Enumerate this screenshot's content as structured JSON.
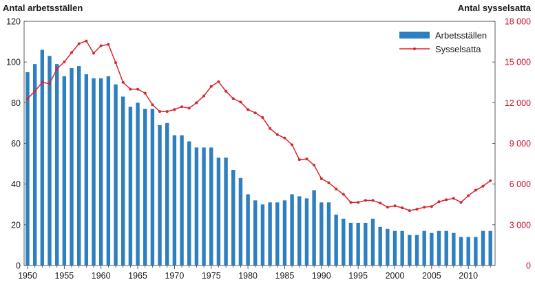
{
  "chart_data": {
    "type": "bar+line",
    "left_axis_title": "Antal arbetsställen",
    "right_axis_title": "Antal sysselsatta",
    "x": [
      1950,
      1951,
      1952,
      1953,
      1954,
      1955,
      1956,
      1957,
      1958,
      1959,
      1960,
      1961,
      1962,
      1963,
      1964,
      1965,
      1966,
      1967,
      1968,
      1969,
      1970,
      1971,
      1972,
      1973,
      1974,
      1975,
      1976,
      1977,
      1978,
      1979,
      1980,
      1981,
      1982,
      1983,
      1984,
      1985,
      1986,
      1987,
      1988,
      1989,
      1990,
      1991,
      1992,
      1993,
      1994,
      1995,
      1996,
      1997,
      1998,
      1999,
      2000,
      2001,
      2002,
      2003,
      2004,
      2005,
      2006,
      2007,
      2008,
      2009,
      2010,
      2011,
      2012,
      2013
    ],
    "x_ticks": [
      "1950",
      "1955",
      "1960",
      "1965",
      "1970",
      "1975",
      "1980",
      "1985",
      "1990",
      "1995",
      "2000",
      "2005",
      "2010"
    ],
    "left_ticks": [
      "0",
      "20",
      "40",
      "60",
      "80",
      "100",
      "120"
    ],
    "right_ticks": [
      "0",
      "3 000",
      "6 000",
      "9 000",
      "12 000",
      "15 000",
      "18 000"
    ],
    "left_ylim": [
      0,
      120
    ],
    "right_ylim": [
      0,
      18000
    ],
    "series": [
      {
        "name": "Arbetsställen",
        "type": "bar",
        "axis": "left",
        "color": "#2e7fc0",
        "values": [
          95,
          99,
          106,
          103,
          99,
          93,
          97,
          98,
          94,
          92,
          92,
          93,
          89,
          83,
          78,
          80,
          77,
          77,
          69,
          70,
          64,
          64,
          61,
          58,
          58,
          58,
          53,
          53,
          47,
          43,
          35,
          32,
          30,
          31,
          31,
          32,
          35,
          34,
          33,
          37,
          31,
          31,
          25,
          23,
          21,
          21,
          21,
          23,
          19,
          18,
          17,
          17,
          15,
          15,
          17,
          16,
          17,
          17,
          16,
          14,
          14,
          14,
          17,
          17
        ]
      },
      {
        "name": "Sysselsatta",
        "type": "line",
        "axis": "right",
        "color": "#d7262f",
        "values": [
          12300,
          12850,
          13500,
          13400,
          14500,
          15000,
          15700,
          16350,
          16550,
          15650,
          16200,
          16300,
          14950,
          13500,
          13000,
          13000,
          12700,
          11850,
          11350,
          11350,
          11500,
          11700,
          11600,
          12000,
          12500,
          13200,
          13550,
          12850,
          12300,
          12050,
          11500,
          11250,
          10900,
          10100,
          9650,
          9400,
          8900,
          7800,
          7850,
          7400,
          6400,
          6100,
          5650,
          5250,
          4650,
          4650,
          4800,
          4800,
          4600,
          4300,
          4400,
          4250,
          4050,
          4150,
          4300,
          4350,
          4700,
          4850,
          4950,
          4650,
          5150,
          5550,
          5850,
          6250
        ]
      }
    ],
    "legend_position": "top-right",
    "grid": false
  }
}
